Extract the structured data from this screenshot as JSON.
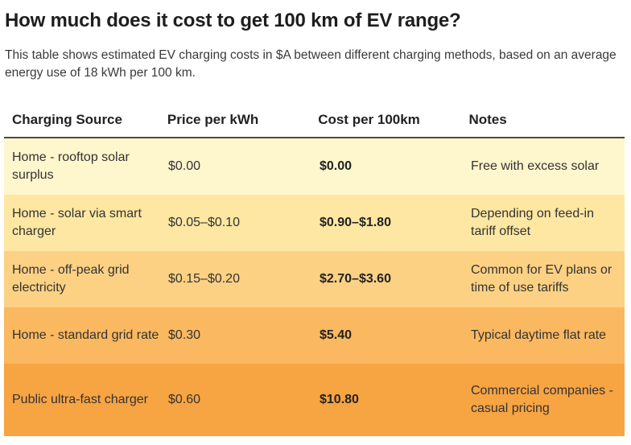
{
  "title": "How much does it cost to get 100 km of EV range?",
  "subtitle": "This table shows estimated EV charging costs in $A between different charging methods, based on an average energy use of 18 kWh per 100 km.",
  "chart_data": {
    "type": "table",
    "columns": [
      "Charging Source",
      "Price per kWh",
      "Cost per 100km",
      "Notes"
    ],
    "rows": [
      {
        "source": "Home - rooftop solar surplus",
        "price": "$0.00",
        "cost": "$0.00",
        "notes": "Free with excess solar",
        "color": "#fef6cc"
      },
      {
        "source": "Home - solar via smart charger",
        "price": "$0.05–$0.10",
        "cost": "$0.90–$1.80",
        "notes": "Depending on feed-in tariff offset",
        "color": "#fde7a2"
      },
      {
        "source": "Home - off-peak grid electricity",
        "price": "$0.15–$0.20",
        "cost": "$2.70–$3.60",
        "notes": "Common for EV plans or time of use tariffs",
        "color": "#fcd184"
      },
      {
        "source": "Home - standard grid rate",
        "price": "$0.30",
        "cost": "$5.40",
        "notes": "Typical daytime flat rate",
        "color": "#fab860"
      },
      {
        "source": "Public ultra-fast charger",
        "price": "$0.60",
        "cost": "$10.80",
        "notes": "Commercial companies - casual pricing",
        "color": "#f7a443"
      }
    ]
  }
}
